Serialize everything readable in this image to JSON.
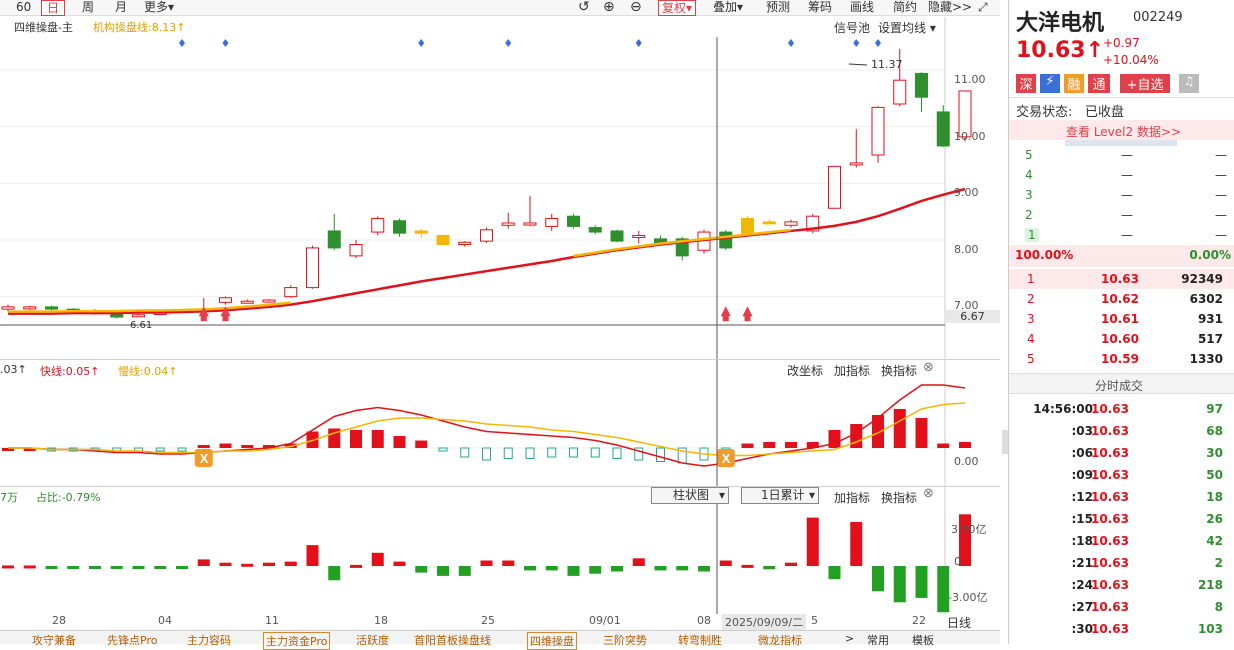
{
  "toolbar": {
    "p60": "60",
    "day": "日",
    "week": "周",
    "month": "月",
    "more": "更多▾",
    "fuquan": "复权▾",
    "overlay": "叠加▾",
    "warn": "预测",
    "chips": "筹码",
    "draw": "画线",
    "simple": "简约",
    "hide": "隐藏>>"
  },
  "main_panel": {
    "name": "四维操盘-主",
    "inst_line": "机构操盘线:8.13↑",
    "signal_pool": "信号池",
    "set_ma": "设置均线 ▾",
    "peak_label": "11.37",
    "low_label": "6.61",
    "cross_value": "6.67",
    "y_labels": [
      "11.00",
      "10.00",
      "9.00",
      "8.00",
      "7.00"
    ]
  },
  "mid_panel": {
    "first": ".03↑",
    "fast": "快线:0.05↑",
    "slow": "慢线:0.04↑",
    "btn_coord": "改坐标",
    "btn_add": "加指标",
    "btn_switch": "换指标",
    "y_label": "0.00"
  },
  "low_panel": {
    "first": "7万",
    "ratio": "占比:-0.79%",
    "select_chart": "柱状图",
    "select_period": "1日累计",
    "btn_add": "加指标",
    "btn_switch": "换指标",
    "y_labels": [
      "3.00亿",
      "0",
      "-3.00亿"
    ]
  },
  "x_axis": {
    "labels": [
      "28",
      "04",
      "11",
      "18",
      "25",
      "09/01",
      "08",
      "5",
      "22"
    ],
    "cursor_date": "2025/09/09/二",
    "period": "日线"
  },
  "bottom_tabs": [
    "攻守兼备",
    "先锋点Pro",
    "主力容码",
    "主力资金Pro",
    "活跃度",
    "首阳首板操盘线",
    "四维操盘",
    "三阶突势",
    "转弯制胜",
    "微龙指标"
  ],
  "bottom_right": [
    "常用",
    "模板"
  ],
  "stock": {
    "name": "大洋电机",
    "code": "002249",
    "price": "10.63↑",
    "change": "+0.97",
    "change_pct": "+10.04%",
    "badges": [
      "深",
      "⚡",
      "融",
      "通"
    ],
    "add_fav": "+自选",
    "trade_status_label": "交易状态:",
    "trade_status": "已收盘",
    "level2": "查看 Level2 数据>>",
    "ask_levels": [
      {
        "n": "5",
        "p": "—",
        "v": "—"
      },
      {
        "n": "4",
        "p": "—",
        "v": "—"
      },
      {
        "n": "3",
        "p": "—",
        "v": "—"
      },
      {
        "n": "2",
        "p": "—",
        "v": "—"
      },
      {
        "n": "1",
        "p": "—",
        "v": "—"
      }
    ],
    "ratio_left": "100.00%",
    "ratio_right": "0.00%",
    "bid_levels": [
      {
        "n": "1",
        "p": "10.63",
        "v": "92349"
      },
      {
        "n": "2",
        "p": "10.62",
        "v": "6302"
      },
      {
        "n": "3",
        "p": "10.61",
        "v": "931"
      },
      {
        "n": "4",
        "p": "10.60",
        "v": "517"
      },
      {
        "n": "5",
        "p": "10.59",
        "v": "1330"
      }
    ],
    "ticks_title": "分时成交",
    "ticks": [
      {
        "t": "14:56:00",
        "p": "10.63",
        "v": "97"
      },
      {
        "t": ":03",
        "p": "10.63",
        "v": "68"
      },
      {
        "t": ":06",
        "p": "10.63",
        "v": "30"
      },
      {
        "t": ":09",
        "p": "10.63",
        "v": "50"
      },
      {
        "t": ":12",
        "p": "10.63",
        "v": "18"
      },
      {
        "t": ":15",
        "p": "10.63",
        "v": "26"
      },
      {
        "t": ":18",
        "p": "10.63",
        "v": "42"
      },
      {
        "t": ":21",
        "p": "10.63",
        "v": "2"
      },
      {
        "t": ":24",
        "p": "10.63",
        "v": "218"
      },
      {
        "t": ":27",
        "p": "10.63",
        "v": "8"
      },
      {
        "t": ":30",
        "p": "10.63",
        "v": "103"
      }
    ]
  },
  "colors": {
    "up": "#e1101a",
    "down": "#2f8f2f",
    "accent": "#e1404a",
    "yellow": "#f2b705"
  },
  "chart_data": {
    "type": "candlestick",
    "ylim": [
      6.5,
      11.6
    ],
    "candles": [
      {
        "o": 6.78,
        "c": 6.82,
        "h": 6.86,
        "l": 6.74
      },
      {
        "o": 6.8,
        "c": 6.82,
        "h": 6.84,
        "l": 6.76
      },
      {
        "o": 6.82,
        "c": 6.78,
        "h": 6.84,
        "l": 6.75
      },
      {
        "o": 6.78,
        "c": 6.76,
        "h": 6.8,
        "l": 6.74
      },
      {
        "o": 6.74,
        "c": 6.7,
        "h": 6.78,
        "l": 6.68
      },
      {
        "o": 6.7,
        "c": 6.64,
        "h": 6.72,
        "l": 6.61
      },
      {
        "o": 6.66,
        "c": 6.68,
        "h": 6.7,
        "l": 6.64
      },
      {
        "o": 6.7,
        "c": 6.72,
        "h": 6.74,
        "l": 6.68
      },
      {
        "o": 6.74,
        "c": 6.76,
        "h": 6.78,
        "l": 6.72
      },
      {
        "o": 6.74,
        "c": 6.78,
        "h": 6.98,
        "l": 6.72
      },
      {
        "o": 6.9,
        "c": 6.98,
        "h": 7.0,
        "l": 6.86
      },
      {
        "o": 6.92,
        "c": 6.92,
        "h": 6.95,
        "l": 6.89
      },
      {
        "o": 6.92,
        "c": 6.94,
        "h": 6.96,
        "l": 6.9
      },
      {
        "o": 7.0,
        "c": 7.16,
        "h": 7.2,
        "l": 6.98
      },
      {
        "o": 7.16,
        "c": 7.86,
        "h": 7.9,
        "l": 7.14
      },
      {
        "o": 8.16,
        "c": 7.86,
        "h": 8.46,
        "l": 7.82
      },
      {
        "o": 7.72,
        "c": 7.92,
        "h": 8.0,
        "l": 7.68
      },
      {
        "o": 8.14,
        "c": 8.38,
        "h": 8.42,
        "l": 8.08
      },
      {
        "o": 8.34,
        "c": 8.12,
        "h": 8.38,
        "l": 8.06
      },
      {
        "o": 8.16,
        "c": 8.12,
        "h": 8.2,
        "l": 8.04
      },
      {
        "o": 8.08,
        "c": 7.92,
        "h": 8.1,
        "l": 7.9
      },
      {
        "o": 7.92,
        "c": 7.96,
        "h": 7.98,
        "l": 7.88
      },
      {
        "o": 7.98,
        "c": 8.18,
        "h": 8.22,
        "l": 7.95
      },
      {
        "o": 8.26,
        "c": 8.3,
        "h": 8.48,
        "l": 8.2
      },
      {
        "o": 8.3,
        "c": 8.3,
        "h": 8.78,
        "l": 8.24
      },
      {
        "o": 8.24,
        "c": 8.38,
        "h": 8.46,
        "l": 8.16
      },
      {
        "o": 8.42,
        "c": 8.24,
        "h": 8.46,
        "l": 8.2
      },
      {
        "o": 8.22,
        "c": 8.14,
        "h": 8.26,
        "l": 8.1
      },
      {
        "o": 8.16,
        "c": 7.98,
        "h": 8.18,
        "l": 7.96
      },
      {
        "o": 8.06,
        "c": 8.08,
        "h": 8.16,
        "l": 7.94
      },
      {
        "o": 8.02,
        "c": 7.94,
        "h": 8.08,
        "l": 7.9
      },
      {
        "o": 8.02,
        "c": 7.72,
        "h": 8.06,
        "l": 7.64
      },
      {
        "o": 7.82,
        "c": 8.14,
        "h": 8.18,
        "l": 7.76
      },
      {
        "o": 8.14,
        "c": 7.86,
        "h": 8.18,
        "l": 7.82
      },
      {
        "o": 8.38,
        "c": 8.12,
        "h": 8.42,
        "l": 8.1
      },
      {
        "o": 8.32,
        "c": 8.32,
        "h": 8.36,
        "l": 8.28
      },
      {
        "o": 8.26,
        "c": 8.32,
        "h": 8.36,
        "l": 8.22
      },
      {
        "o": 8.16,
        "c": 8.42,
        "h": 8.46,
        "l": 8.12
      },
      {
        "o": 8.56,
        "c": 9.3,
        "h": 9.3,
        "l": 8.56
      },
      {
        "o": 9.36,
        "c": 9.36,
        "h": 9.96,
        "l": 9.28
      },
      {
        "o": 9.5,
        "c": 10.34,
        "h": 10.36,
        "l": 9.36
      },
      {
        "o": 10.4,
        "c": 10.82,
        "h": 11.37,
        "l": 10.36
      },
      {
        "o": 10.94,
        "c": 10.52,
        "h": 10.96,
        "l": 10.26
      },
      {
        "o": 10.26,
        "c": 9.66,
        "h": 10.38,
        "l": 9.64
      },
      {
        "o": 9.82,
        "c": 10.63,
        "h": 10.63,
        "l": 9.74
      }
    ],
    "candle_colors": {
      "19": "#f2b705",
      "20": "#f2b705",
      "34": "#f2b705",
      "35": "#f2b705"
    },
    "ma_red": [
      6.7,
      6.7,
      6.7,
      6.71,
      6.71,
      6.71,
      6.72,
      6.72,
      6.73,
      6.74,
      6.76,
      6.79,
      6.82,
      6.86,
      6.92,
      6.99,
      7.06,
      7.13,
      7.2,
      7.27,
      7.33,
      7.39,
      7.45,
      7.51,
      7.57,
      7.63,
      7.7,
      7.76,
      7.82,
      7.87,
      7.92,
      7.96,
      8.0,
      8.04,
      8.08,
      8.12,
      8.16,
      8.2,
      8.25,
      8.32,
      8.42,
      8.55,
      8.69,
      8.8,
      8.9
    ],
    "signals_rocket": [
      9,
      10,
      33,
      34
    ],
    "macd_fast": [
      0.0,
      0.0,
      -0.01,
      -0.01,
      -0.02,
      -0.03,
      -0.03,
      -0.04,
      -0.04,
      -0.03,
      -0.02,
      -0.01,
      0.0,
      0.03,
      0.12,
      0.21,
      0.25,
      0.27,
      0.25,
      0.22,
      0.18,
      0.14,
      0.11,
      0.1,
      0.09,
      0.08,
      0.07,
      0.05,
      0.02,
      -0.02,
      -0.06,
      -0.1,
      -0.12,
      -0.1,
      -0.07,
      -0.04,
      -0.02,
      0.0,
      0.03,
      0.1,
      0.2,
      0.32,
      0.42,
      0.42,
      0.4
    ],
    "macd_slow": [
      0.0,
      0.0,
      -0.01,
      -0.01,
      -0.01,
      -0.02,
      -0.02,
      -0.03,
      -0.03,
      -0.03,
      -0.02,
      -0.02,
      -0.01,
      0.01,
      0.05,
      0.1,
      0.14,
      0.18,
      0.2,
      0.2,
      0.19,
      0.18,
      0.16,
      0.15,
      0.14,
      0.12,
      0.11,
      0.09,
      0.07,
      0.04,
      0.01,
      -0.02,
      -0.04,
      -0.05,
      -0.05,
      -0.04,
      -0.03,
      -0.02,
      -0.01,
      0.04,
      0.1,
      0.18,
      0.26,
      0.29,
      0.3
    ],
    "macd_hist": [
      0.0,
      0.0,
      -0.01,
      -0.01,
      -0.02,
      -0.02,
      -0.02,
      -0.02,
      -0.02,
      0.02,
      0.03,
      0.02,
      0.02,
      0.03,
      0.11,
      0.13,
      0.12,
      0.12,
      0.08,
      0.05,
      -0.02,
      -0.06,
      -0.08,
      -0.07,
      -0.07,
      -0.06,
      -0.06,
      -0.06,
      -0.07,
      -0.08,
      -0.09,
      -0.1,
      -0.08,
      -0.04,
      0.03,
      0.04,
      0.04,
      0.04,
      0.12,
      0.16,
      0.22,
      0.26,
      0.2,
      0.03,
      0.04
    ],
    "macd_signals": [
      9,
      33
    ],
    "flow_values": [
      0.05,
      0.05,
      -0.2,
      -0.1,
      -0.05,
      -0.05,
      -0.05,
      -0.05,
      -0.05,
      0.6,
      0.3,
      0.2,
      0.3,
      0.4,
      1.9,
      -1.3,
      0.1,
      1.2,
      0.4,
      -0.6,
      -0.9,
      -0.9,
      0.5,
      0.5,
      -0.4,
      -0.4,
      -0.9,
      -0.7,
      -0.5,
      0.7,
      -0.4,
      -0.4,
      -0.5,
      0.5,
      0.1,
      -0.3,
      0.3,
      4.4,
      -1.2,
      4.0,
      -2.3,
      -3.3,
      -2.9,
      -4.2,
      4.7
    ],
    "flow_ylim": [
      -4.2,
      4.7
    ]
  }
}
